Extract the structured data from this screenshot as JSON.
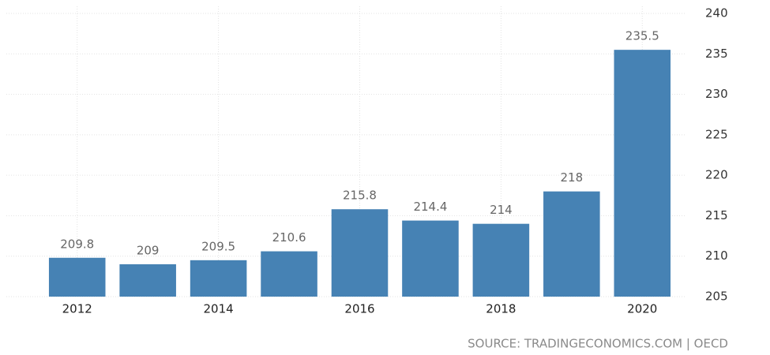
{
  "chart_data": {
    "type": "bar",
    "categories": [
      "2012",
      null,
      "2014",
      null,
      "2016",
      null,
      "2018",
      null,
      "2020"
    ],
    "values": [
      209.8,
      209,
      209.5,
      210.6,
      215.8,
      214.4,
      214,
      218,
      235.5
    ],
    "color": "#4682b4",
    "ylim": [
      205,
      240
    ],
    "yticks": [
      205,
      210,
      215,
      220,
      225,
      230,
      235,
      240
    ],
    "grid": true,
    "source": "SOURCE: TRADINGECONOMICS.COM | OECD"
  }
}
